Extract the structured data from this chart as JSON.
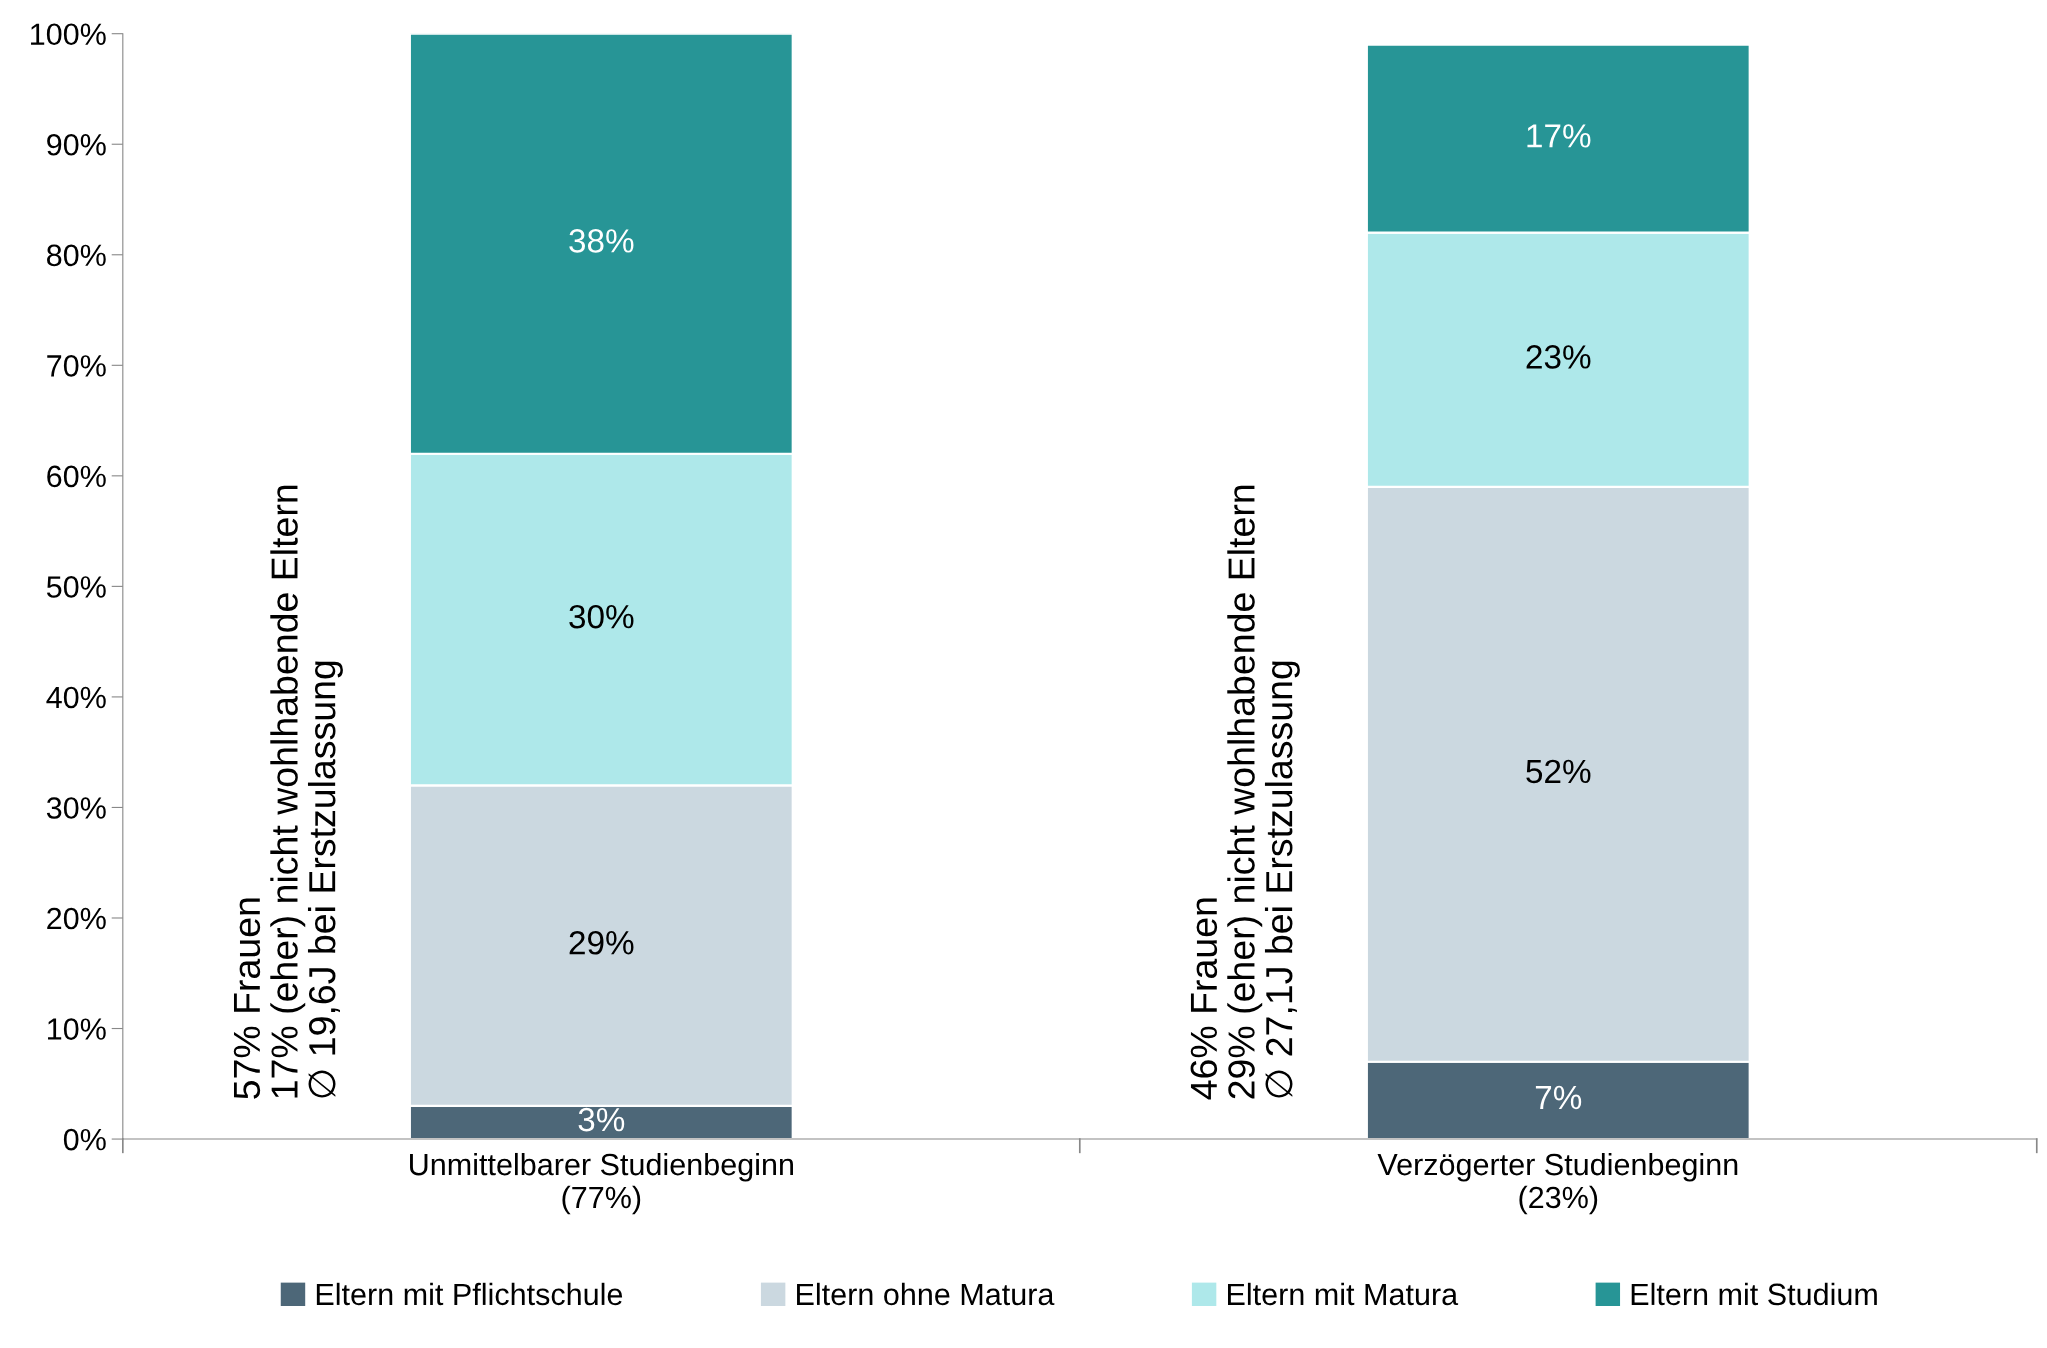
{
  "chart_data": {
    "type": "bar",
    "stacked": true,
    "categories": [
      "Unmittelbarer Studienbeginn\n(77%)",
      "Verzögerter Studienbeginn\n(23%)"
    ],
    "series": [
      {
        "name": "Eltern mit Pflichtschule",
        "color": "#4d6778",
        "values": [
          3,
          7
        ],
        "value_labels": [
          "3%",
          "7%"
        ]
      },
      {
        "name": "Eltern ohne Matura",
        "color": "#cbd8e0",
        "values": [
          29,
          52
        ],
        "value_labels": [
          "29%",
          "52%"
        ]
      },
      {
        "name": "Eltern mit Matura",
        "color": "#aee8ea",
        "values": [
          30,
          23
        ],
        "value_labels": [
          "30%",
          "23%"
        ]
      },
      {
        "name": "Eltern mit Studium",
        "color": "#279596",
        "values": [
          38,
          17
        ],
        "value_labels": [
          "38%",
          "17%"
        ]
      }
    ],
    "ylim": [
      0,
      100
    ],
    "yticks": [
      {
        "value": 0,
        "label": "0%"
      },
      {
        "value": 10,
        "label": "10%"
      },
      {
        "value": 20,
        "label": "20%"
      },
      {
        "value": 30,
        "label": "30%"
      },
      {
        "value": 40,
        "label": "40%"
      },
      {
        "value": 50,
        "label": "50%"
      },
      {
        "value": 60,
        "label": "60%"
      },
      {
        "value": 70,
        "label": "70%"
      },
      {
        "value": 80,
        "label": "80%"
      },
      {
        "value": 90,
        "label": "90%"
      },
      {
        "value": 100,
        "label": "100%"
      }
    ],
    "annotations": [
      "57% Frauen\n17% (eher) nicht wohlhabende Eltern\n∅ 19,6J bei Erstzulassung",
      "46% Frauen\n29% (eher) nicht wohlhabende Eltern\n∅ 27,1J bei Erstzulassung"
    ],
    "grid": false,
    "legend": "bottom"
  }
}
